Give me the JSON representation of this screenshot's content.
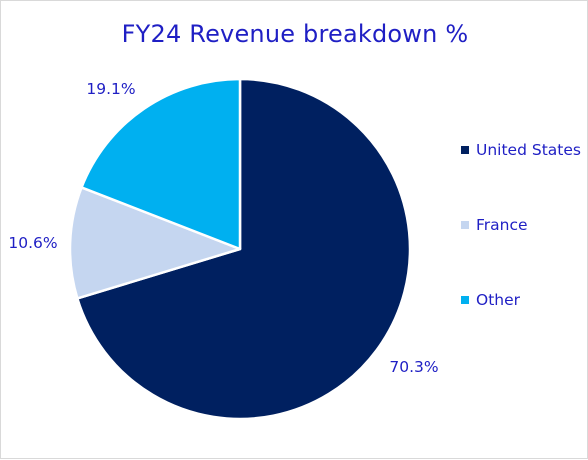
{
  "chart_data": {
    "type": "pie",
    "title": "FY24 Revenue breakdown %",
    "categories": [
      "United States",
      "France",
      "Other"
    ],
    "values": [
      70.3,
      10.6,
      19.1
    ],
    "data_labels": [
      "70.3%",
      "10.6%",
      "19.1%"
    ],
    "colors": [
      "#002060",
      "#c5d6f0",
      "#00b0f0"
    ],
    "start_angle_deg": 0,
    "direction": "clockwise",
    "legend_position": "right",
    "label_color": "#1f1fc4"
  }
}
